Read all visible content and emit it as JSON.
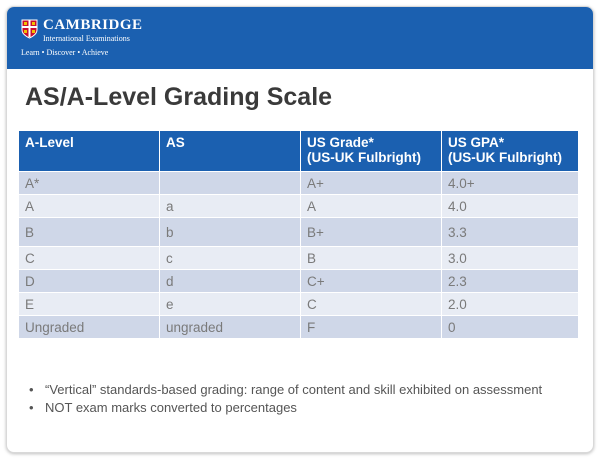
{
  "header": {
    "brand_name": "CAMBRIDGE",
    "brand_sub": "International Examinations",
    "tagline": "Learn • Discover • Achieve",
    "banner_color": "#1b60b0"
  },
  "title": "AS/A-Level Grading Scale",
  "table": {
    "headers": [
      {
        "line1": "A-Level",
        "line2": ""
      },
      {
        "line1": "AS",
        "line2": ""
      },
      {
        "line1": "US Grade*",
        "line2": "(US-UK Fulbright)"
      },
      {
        "line1": "US GPA*",
        "line2": "(US-UK Fulbright)"
      }
    ],
    "rows": [
      [
        "A*",
        "",
        "A+",
        "4.0+"
      ],
      [
        "A",
        "a",
        "A",
        "4.0"
      ],
      [
        "B",
        "b",
        "B+",
        "3.3"
      ],
      [
        "C",
        "c",
        "B",
        "3.0"
      ],
      [
        "D",
        "d",
        "C+",
        "2.3"
      ],
      [
        "E",
        "e",
        "C",
        "2.0"
      ],
      [
        "Ungraded",
        "ungraded",
        "F",
        "0"
      ]
    ]
  },
  "bullets": [
    "“Vertical” standards-based grading: range of content and skill exhibited on assessment",
    "NOT exam marks converted to percentages"
  ]
}
